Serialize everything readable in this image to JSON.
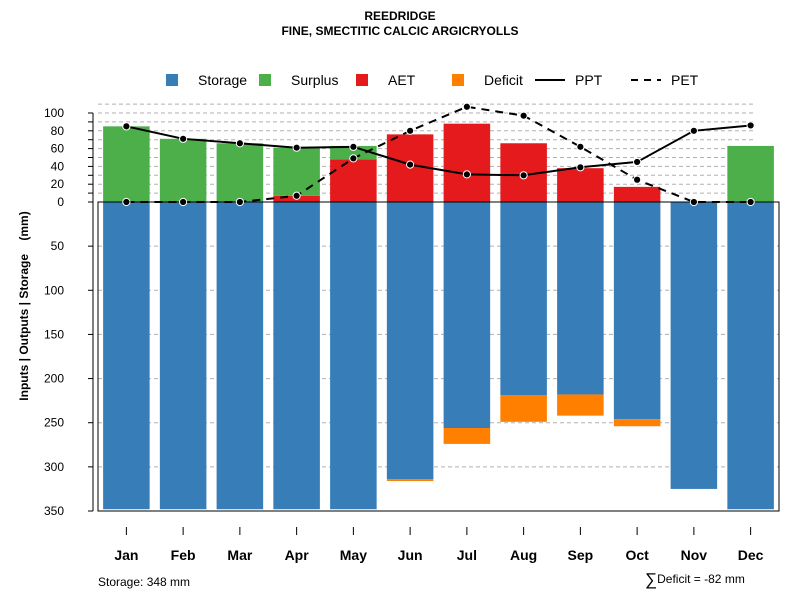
{
  "chart_data": {
    "type": "bar",
    "title": "REEDRIDGE",
    "subtitle": "FINE, SMECTITIC CALCIC ARGICRYOLLS",
    "ylabel": "Inputs | Outputs | Storage    (mm)",
    "xlabel": "",
    "categories": [
      "Jan",
      "Feb",
      "Mar",
      "Apr",
      "May",
      "Jun",
      "Jul",
      "Aug",
      "Sep",
      "Oct",
      "Nov",
      "Dec"
    ],
    "upper_ticks": [
      "0",
      "20",
      "40",
      "60",
      "80",
      "100"
    ],
    "lower_ticks": [
      "0",
      "50",
      "100",
      "150",
      "200",
      "250",
      "300",
      "350"
    ],
    "upper_range": [
      0,
      110
    ],
    "lower_range": [
      0,
      350
    ],
    "legend": [
      {
        "label": "Storage",
        "color": "#377EB8",
        "kind": "square"
      },
      {
        "label": "Surplus",
        "color": "#4DAF4A",
        "kind": "square"
      },
      {
        "label": "AET",
        "color": "#E41A1C",
        "kind": "square"
      },
      {
        "label": "Deficit",
        "color": "#FF7F00",
        "kind": "square"
      },
      {
        "label": "PPT",
        "color": "#000000",
        "kind": "solid"
      },
      {
        "label": "PET",
        "color": "#000000",
        "kind": "dashed"
      }
    ],
    "series": [
      {
        "name": "Storage",
        "values": [
          348,
          348,
          348,
          348,
          348,
          314,
          256,
          219,
          218,
          246,
          325,
          348
        ]
      },
      {
        "name": "Deficit",
        "values": [
          0,
          0,
          0,
          0,
          0,
          2,
          18,
          30,
          24,
          8,
          0,
          0
        ]
      },
      {
        "name": "Surplus",
        "values": [
          85,
          71,
          66,
          54,
          15,
          0,
          0,
          0,
          0,
          0,
          0,
          63
        ]
      },
      {
        "name": "AET",
        "values": [
          0,
          0,
          0,
          7,
          48,
          76,
          88,
          66,
          38,
          17,
          0,
          0
        ]
      },
      {
        "name": "PPT",
        "values": [
          85,
          71,
          66,
          61,
          62,
          42,
          31,
          30,
          39,
          45,
          80,
          86
        ]
      },
      {
        "name": "PET",
        "values": [
          0,
          0,
          0,
          7,
          49,
          80,
          107,
          97,
          62,
          25,
          0,
          0
        ]
      }
    ]
  },
  "footer": {
    "storage_text": "Storage: 348 mm",
    "deficit_sigma": "∑",
    "deficit_text": "Deficit = -82 mm"
  }
}
